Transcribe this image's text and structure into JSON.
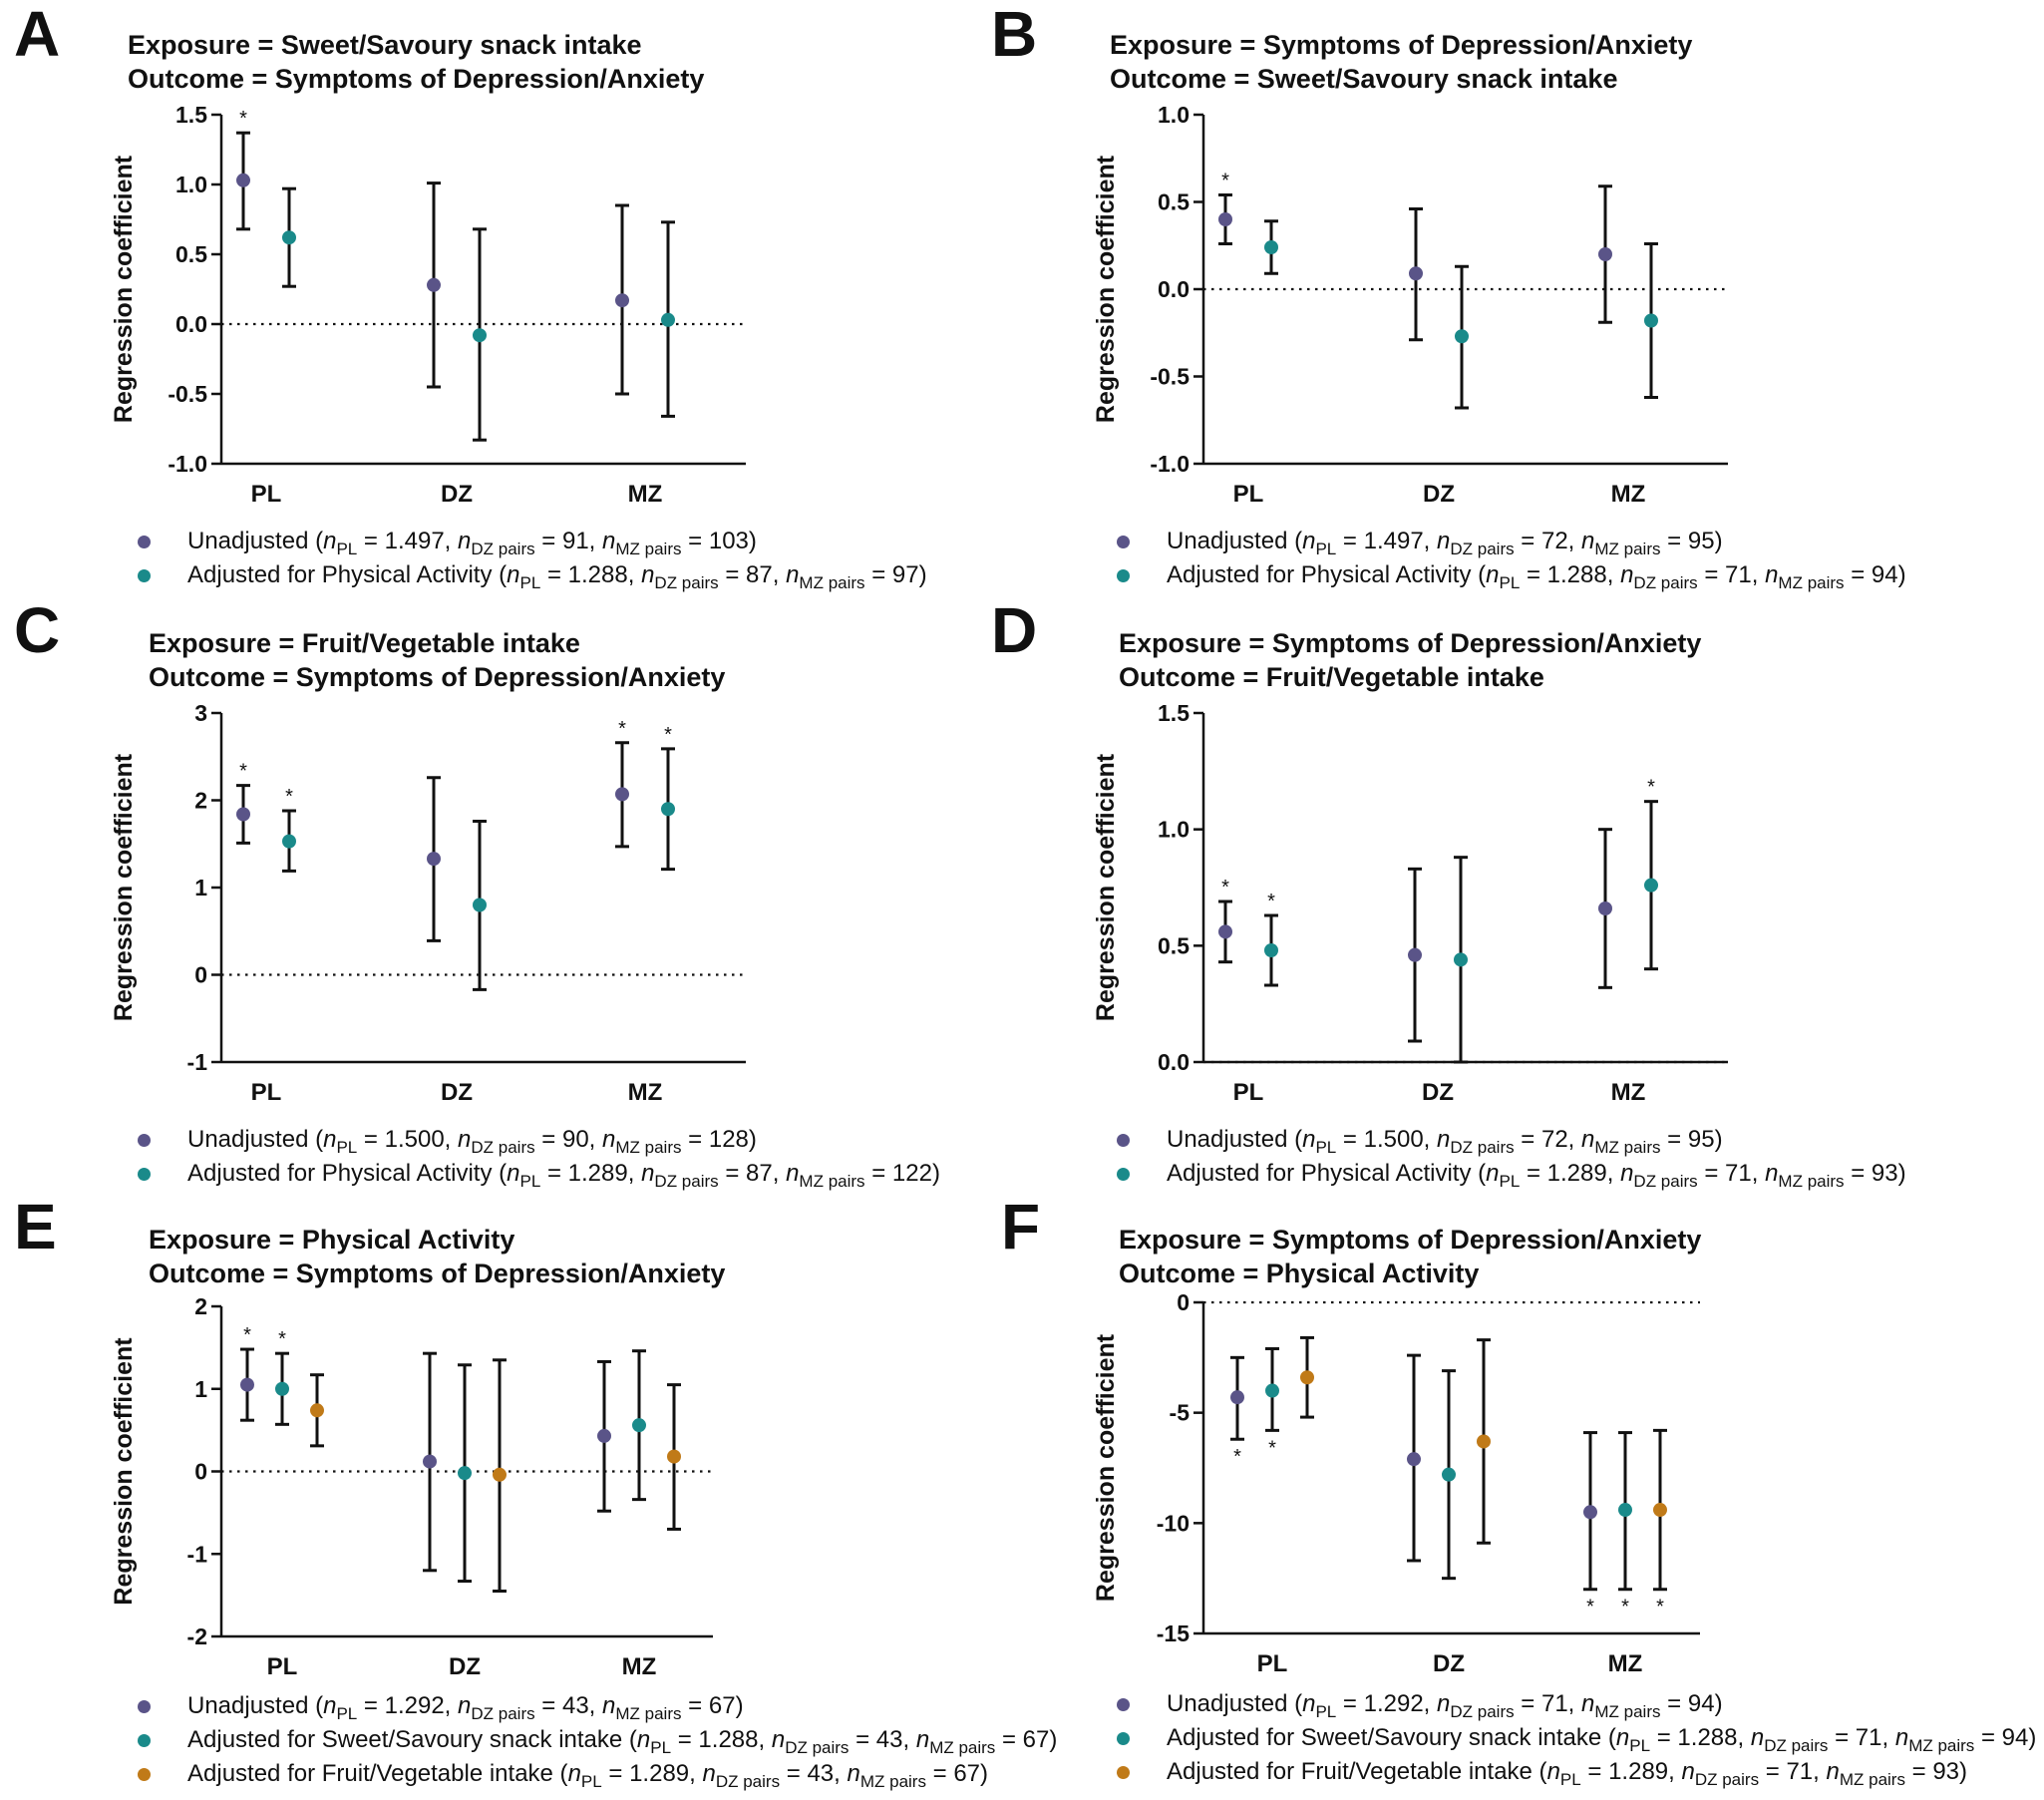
{
  "colors": {
    "unadjusted": "#5a5488",
    "adjusted_pa": "#1a8a8a",
    "adjusted_other": "#c07a18",
    "axis": "#111111"
  },
  "common": {
    "ylabel": "Regression coefficient",
    "categories": [
      "PL",
      "DZ",
      "MZ"
    ]
  },
  "panels": [
    {
      "letter": "A",
      "title_line1": "Exposure = Sweet/Savoury snack intake",
      "title_line2": "Outcome = Symptoms of Depression/Anxiety",
      "legend": [
        {
          "label": "Unadjusted",
          "n_pl": "1.497",
          "n_dz": "91",
          "n_mz": "103"
        },
        {
          "label": "Adjusted for Physical Activity",
          "n_pl": "1.288",
          "n_dz": "87",
          "n_mz": "97"
        }
      ]
    },
    {
      "letter": "B",
      "title_line1": "Exposure = Symptoms of Depression/Anxiety",
      "title_line2": "Outcome = Sweet/Savoury snack intake",
      "legend": [
        {
          "label": "Unadjusted",
          "n_pl": "1.497",
          "n_dz": "72",
          "n_mz": "95"
        },
        {
          "label": "Adjusted for Physical Activity",
          "n_pl": "1.288",
          "n_dz": "71",
          "n_mz": "94"
        }
      ]
    },
    {
      "letter": "C",
      "title_line1": "Exposure = Fruit/Vegetable intake",
      "title_line2": "Outcome = Symptoms of Depression/Anxiety",
      "legend": [
        {
          "label": "Unadjusted",
          "n_pl": "1.500",
          "n_dz": "90",
          "n_mz": "128"
        },
        {
          "label": "Adjusted for Physical Activity",
          "n_pl": "1.289",
          "n_dz": "87",
          "n_mz": "122"
        }
      ]
    },
    {
      "letter": "D",
      "title_line1": "Exposure = Symptoms of Depression/Anxiety",
      "title_line2": "Outcome = Fruit/Vegetable intake",
      "legend": [
        {
          "label": "Unadjusted",
          "n_pl": "1.500",
          "n_dz": "72",
          "n_mz": "95"
        },
        {
          "label": "Adjusted for Physical Activity",
          "n_pl": "1.289",
          "n_dz": "71",
          "n_mz": "93"
        }
      ]
    },
    {
      "letter": "E",
      "title_line1": "Exposure = Physical Activity",
      "title_line2": "Outcome = Symptoms of Depression/Anxiety",
      "legend": [
        {
          "label": "Unadjusted",
          "n_pl": "1.292",
          "n_dz": "43",
          "n_mz": "67"
        },
        {
          "label": "Adjusted for Sweet/Savoury snack intake",
          "n_pl": "1.288",
          "n_dz": "43",
          "n_mz": "67"
        },
        {
          "label": "Adjusted for Fruit/Vegetable intake",
          "n_pl": "1.289",
          "n_dz": "43",
          "n_mz": "67"
        }
      ]
    },
    {
      "letter": "F",
      "title_line1": "Exposure = Symptoms of Depression/Anxiety",
      "title_line2": "Outcome = Physical Activity",
      "legend": [
        {
          "label": "Unadjusted",
          "n_pl": "1.292",
          "n_dz": "71",
          "n_mz": "94"
        },
        {
          "label": "Adjusted for Sweet/Savoury snack intake",
          "n_pl": "1.288",
          "n_dz": "71",
          "n_mz": "94"
        },
        {
          "label": "Adjusted for Fruit/Vegetable intake",
          "n_pl": "1.289",
          "n_dz": "71",
          "n_mz": "93"
        }
      ]
    }
  ],
  "chart_data": [
    {
      "type": "scatter",
      "panel": "A",
      "ylim": [
        -1.0,
        1.5
      ],
      "yticks": [
        "1.5",
        "1.0",
        "0.5",
        "0.0",
        "-0.5",
        "-1.0"
      ],
      "categories": [
        "PL",
        "DZ",
        "MZ"
      ],
      "ylabel": "Regression coefficient",
      "series": [
        {
          "name": "Unadjusted",
          "estimates": [
            1.03,
            0.28,
            0.17
          ],
          "lower": [
            0.68,
            -0.45,
            -0.5
          ],
          "upper": [
            1.37,
            1.01,
            0.85
          ],
          "significant": [
            true,
            false,
            false
          ]
        },
        {
          "name": "Adjusted for Physical Activity",
          "estimates": [
            0.62,
            -0.08,
            0.03
          ],
          "lower": [
            0.27,
            -0.83,
            -0.66
          ],
          "upper": [
            0.97,
            0.68,
            0.73
          ],
          "significant": [
            false,
            false,
            false
          ]
        }
      ]
    },
    {
      "type": "scatter",
      "panel": "B",
      "ylim": [
        -1.0,
        1.0
      ],
      "yticks": [
        "1.0",
        "0.5",
        "0.0",
        "-0.5",
        "-1.0"
      ],
      "categories": [
        "PL",
        "DZ",
        "MZ"
      ],
      "ylabel": "Regression coefficient",
      "series": [
        {
          "name": "Unadjusted",
          "estimates": [
            0.4,
            0.09,
            0.2
          ],
          "lower": [
            0.26,
            -0.29,
            -0.19
          ],
          "upper": [
            0.54,
            0.46,
            0.59
          ],
          "significant": [
            true,
            false,
            false
          ]
        },
        {
          "name": "Adjusted for Physical Activity",
          "estimates": [
            0.24,
            -0.27,
            -0.18
          ],
          "lower": [
            0.09,
            -0.68,
            -0.62
          ],
          "upper": [
            0.39,
            0.13,
            0.26
          ],
          "significant": [
            false,
            false,
            false
          ]
        }
      ]
    },
    {
      "type": "scatter",
      "panel": "C",
      "ylim": [
        -1,
        3
      ],
      "yticks": [
        "3",
        "2",
        "1",
        "0",
        "-1"
      ],
      "categories": [
        "PL",
        "DZ",
        "MZ"
      ],
      "ylabel": "Regression coefficient",
      "series": [
        {
          "name": "Unadjusted",
          "estimates": [
            1.84,
            1.33,
            2.07
          ],
          "lower": [
            1.51,
            0.39,
            1.47
          ],
          "upper": [
            2.17,
            2.26,
            2.66
          ],
          "significant": [
            true,
            false,
            true
          ]
        },
        {
          "name": "Adjusted for Physical Activity",
          "estimates": [
            1.53,
            0.8,
            1.9
          ],
          "lower": [
            1.19,
            -0.17,
            1.21
          ],
          "upper": [
            1.88,
            1.76,
            2.59
          ],
          "significant": [
            true,
            false,
            true
          ]
        }
      ]
    },
    {
      "type": "scatter",
      "panel": "D",
      "ylim": [
        0.0,
        1.5
      ],
      "yticks": [
        "1.5",
        "1.0",
        "0.5",
        "0.0"
      ],
      "categories": [
        "PL",
        "DZ",
        "MZ"
      ],
      "ylabel": "Regression coefficient",
      "series": [
        {
          "name": "Unadjusted",
          "estimates": [
            0.56,
            0.46,
            0.66
          ],
          "lower": [
            0.43,
            0.09,
            0.32
          ],
          "upper": [
            0.69,
            0.83,
            1.0
          ],
          "significant": [
            true,
            false,
            false
          ]
        },
        {
          "name": "Adjusted for Physical Activity",
          "estimates": [
            0.48,
            0.44,
            0.76
          ],
          "lower": [
            0.33,
            0.0,
            0.4
          ],
          "upper": [
            0.63,
            0.88,
            1.12
          ],
          "significant": [
            true,
            false,
            true
          ]
        }
      ]
    },
    {
      "type": "scatter",
      "panel": "E",
      "ylim": [
        -2,
        2
      ],
      "yticks": [
        "2",
        "1",
        "0",
        "-1",
        "-2"
      ],
      "categories": [
        "PL",
        "DZ",
        "MZ"
      ],
      "ylabel": "Regression coefficient",
      "series": [
        {
          "name": "Unadjusted",
          "estimates": [
            1.05,
            0.12,
            0.43
          ],
          "lower": [
            0.62,
            -1.2,
            -0.48
          ],
          "upper": [
            1.48,
            1.43,
            1.33
          ],
          "significant": [
            true,
            false,
            false
          ]
        },
        {
          "name": "Adjusted for Sweet/Savoury snack intake",
          "estimates": [
            1.0,
            -0.02,
            0.56
          ],
          "lower": [
            0.57,
            -1.33,
            -0.34
          ],
          "upper": [
            1.43,
            1.29,
            1.46
          ],
          "significant": [
            true,
            false,
            false
          ]
        },
        {
          "name": "Adjusted for Fruit/Vegetable intake",
          "estimates": [
            0.74,
            -0.04,
            0.18
          ],
          "lower": [
            0.31,
            -1.45,
            -0.7
          ],
          "upper": [
            1.17,
            1.35,
            1.05
          ],
          "significant": [
            false,
            false,
            false
          ]
        }
      ]
    },
    {
      "type": "scatter",
      "panel": "F",
      "ylim": [
        -15,
        0
      ],
      "yticks": [
        "0",
        "-5",
        "-10",
        "-15"
      ],
      "categories": [
        "PL",
        "DZ",
        "MZ"
      ],
      "ylabel": "Regression coefficient",
      "series": [
        {
          "name": "Unadjusted",
          "estimates": [
            -4.3,
            -7.1,
            -9.5
          ],
          "lower": [
            -6.2,
            -11.7,
            -13.0
          ],
          "upper": [
            -2.5,
            -2.4,
            -5.9
          ],
          "significant": [
            true,
            false,
            true
          ]
        },
        {
          "name": "Adjusted for Sweet/Savoury snack intake",
          "estimates": [
            -4.0,
            -7.8,
            -9.4
          ],
          "lower": [
            -5.8,
            -12.5,
            -13.0
          ],
          "upper": [
            -2.1,
            -3.1,
            -5.9
          ],
          "significant": [
            true,
            false,
            true
          ]
        },
        {
          "name": "Adjusted for Fruit/Vegetable intake",
          "estimates": [
            -3.4,
            -6.3,
            -9.4
          ],
          "lower": [
            -5.2,
            -10.9,
            -13.0
          ],
          "upper": [
            -1.6,
            -1.7,
            -5.8
          ],
          "significant": [
            false,
            false,
            true
          ]
        }
      ]
    }
  ]
}
